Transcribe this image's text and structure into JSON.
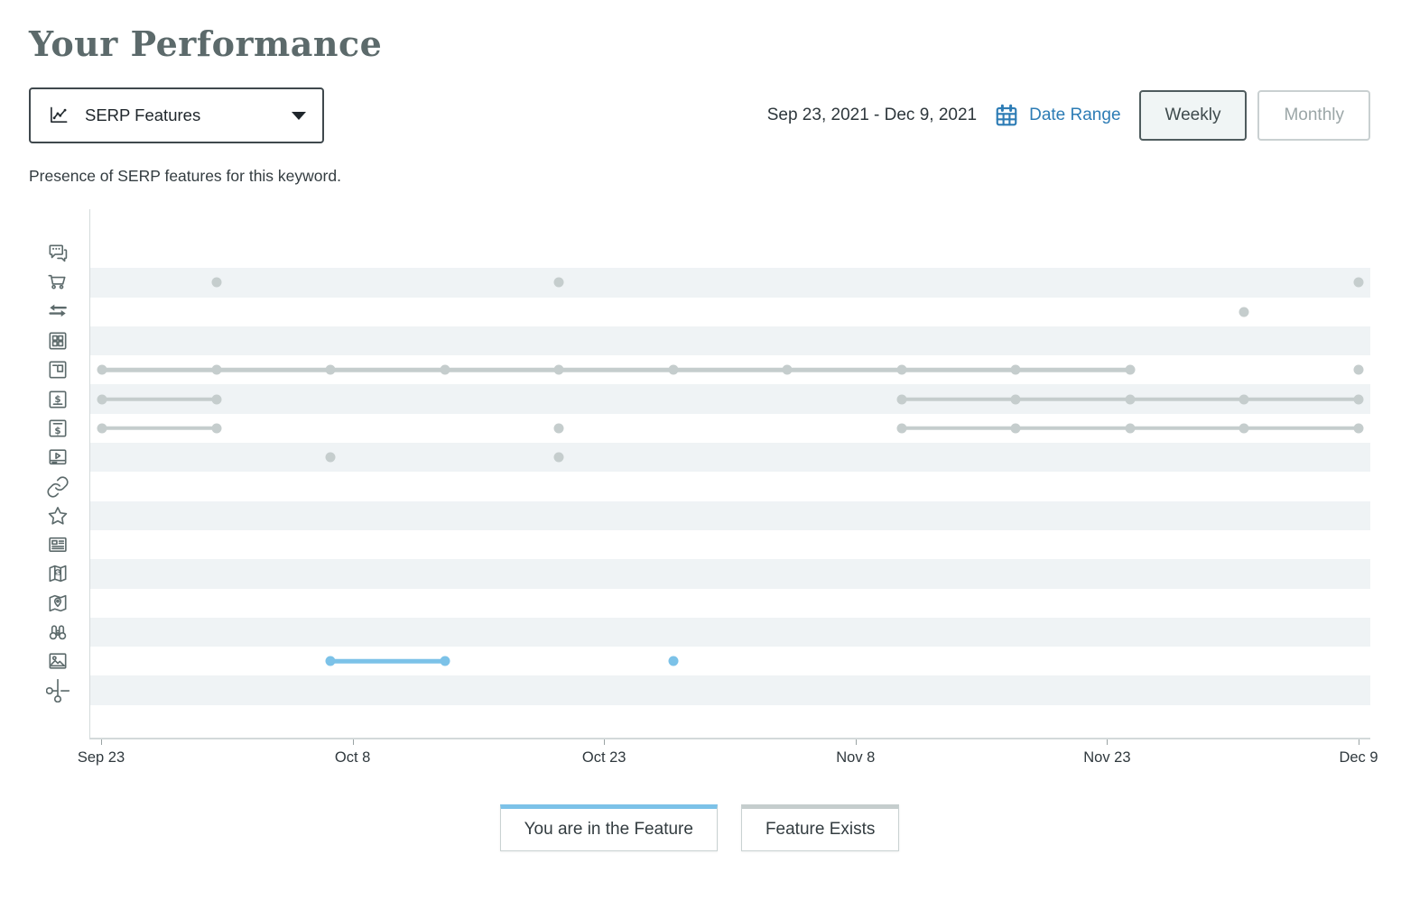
{
  "page": {
    "title": "Your Performance",
    "subtitle": "Presence of SERP features for this keyword."
  },
  "controls": {
    "metric_dropdown": {
      "value": "SERP Features",
      "icon": "line-chart-icon"
    },
    "date_range_text": "Sep 23, 2021 - Dec 9, 2021",
    "date_range_label": "Date Range",
    "calendar_icon": "calendar-icon",
    "granularity": {
      "options": [
        "Weekly",
        "Monthly"
      ],
      "selected": "Weekly"
    }
  },
  "colors": {
    "you": "#7cc2e8",
    "exists": "#c5cdcd",
    "stripe": "#eff3f5",
    "axis": "#d3d9da",
    "link_blue": "#2d7cb5",
    "title_gray": "#5c6a6b"
  },
  "legend": [
    {
      "label": "You are in the Feature",
      "series": "you",
      "color": "#7cc2e8"
    },
    {
      "label": "Feature Exists",
      "series": "exists",
      "color": "#c5cdcd"
    }
  ],
  "chart_data": {
    "type": "scatter",
    "description": "Dot-timeline of SERP feature presence per weekly snapshot; 16 feature rows (identified by icon), 12 weekly x-slots from Sep 23 2021 to Dec 9 2021. Segments connect consecutive weeks where the feature persisted; dots are single-week occurrences.",
    "x_tick_labels": [
      "Sep 23",
      "Oct 8",
      "Oct 23",
      "Nov 8",
      "Nov 23",
      "Dec 9"
    ],
    "x_slot_count": 12,
    "x_index_range": [
      0,
      11
    ],
    "grid": "alternating-row-stripes",
    "legend_position": "bottom-center",
    "rows": [
      {
        "icon": "chat-bubbles-icon",
        "series": "exists",
        "segments": [],
        "dots": []
      },
      {
        "icon": "shopping-cart-icon",
        "series": "exists",
        "segments": [],
        "dots": [
          1,
          4,
          11
        ]
      },
      {
        "icon": "swap-arrows-icon",
        "series": "exists",
        "segments": [],
        "dots": [
          10
        ]
      },
      {
        "icon": "grid-squares-icon",
        "series": "exists",
        "segments": [],
        "dots": []
      },
      {
        "icon": "panel-layout-icon",
        "series": "exists",
        "segments": [
          [
            0,
            9
          ]
        ],
        "dots": [
          11
        ]
      },
      {
        "icon": "dollar-square-top-icon",
        "series": "exists",
        "segments": [
          [
            0,
            1
          ],
          [
            7,
            11
          ]
        ],
        "dots": []
      },
      {
        "icon": "dollar-square-bottom-icon",
        "series": "exists",
        "segments": [
          [
            0,
            1
          ],
          [
            7,
            11
          ]
        ],
        "dots": [
          4
        ]
      },
      {
        "icon": "video-player-icon",
        "series": "exists",
        "segments": [],
        "dots": [
          2,
          4
        ]
      },
      {
        "icon": "link-icon",
        "series": "exists",
        "segments": [],
        "dots": []
      },
      {
        "icon": "star-icon",
        "series": "exists",
        "segments": [],
        "dots": []
      },
      {
        "icon": "newspaper-icon",
        "series": "exists",
        "segments": [],
        "dots": []
      },
      {
        "icon": "map-dollar-icon",
        "series": "exists",
        "segments": [],
        "dots": []
      },
      {
        "icon": "map-pin-icon",
        "series": "exists",
        "segments": [],
        "dots": []
      },
      {
        "icon": "binoculars-icon",
        "series": "exists",
        "segments": [],
        "dots": []
      },
      {
        "icon": "image-icon",
        "series": "you",
        "segments": [
          [
            2,
            3
          ]
        ],
        "dots": [
          5
        ]
      },
      {
        "icon": "scissors-icon",
        "series": "exists",
        "segments": [],
        "dots": []
      }
    ]
  }
}
